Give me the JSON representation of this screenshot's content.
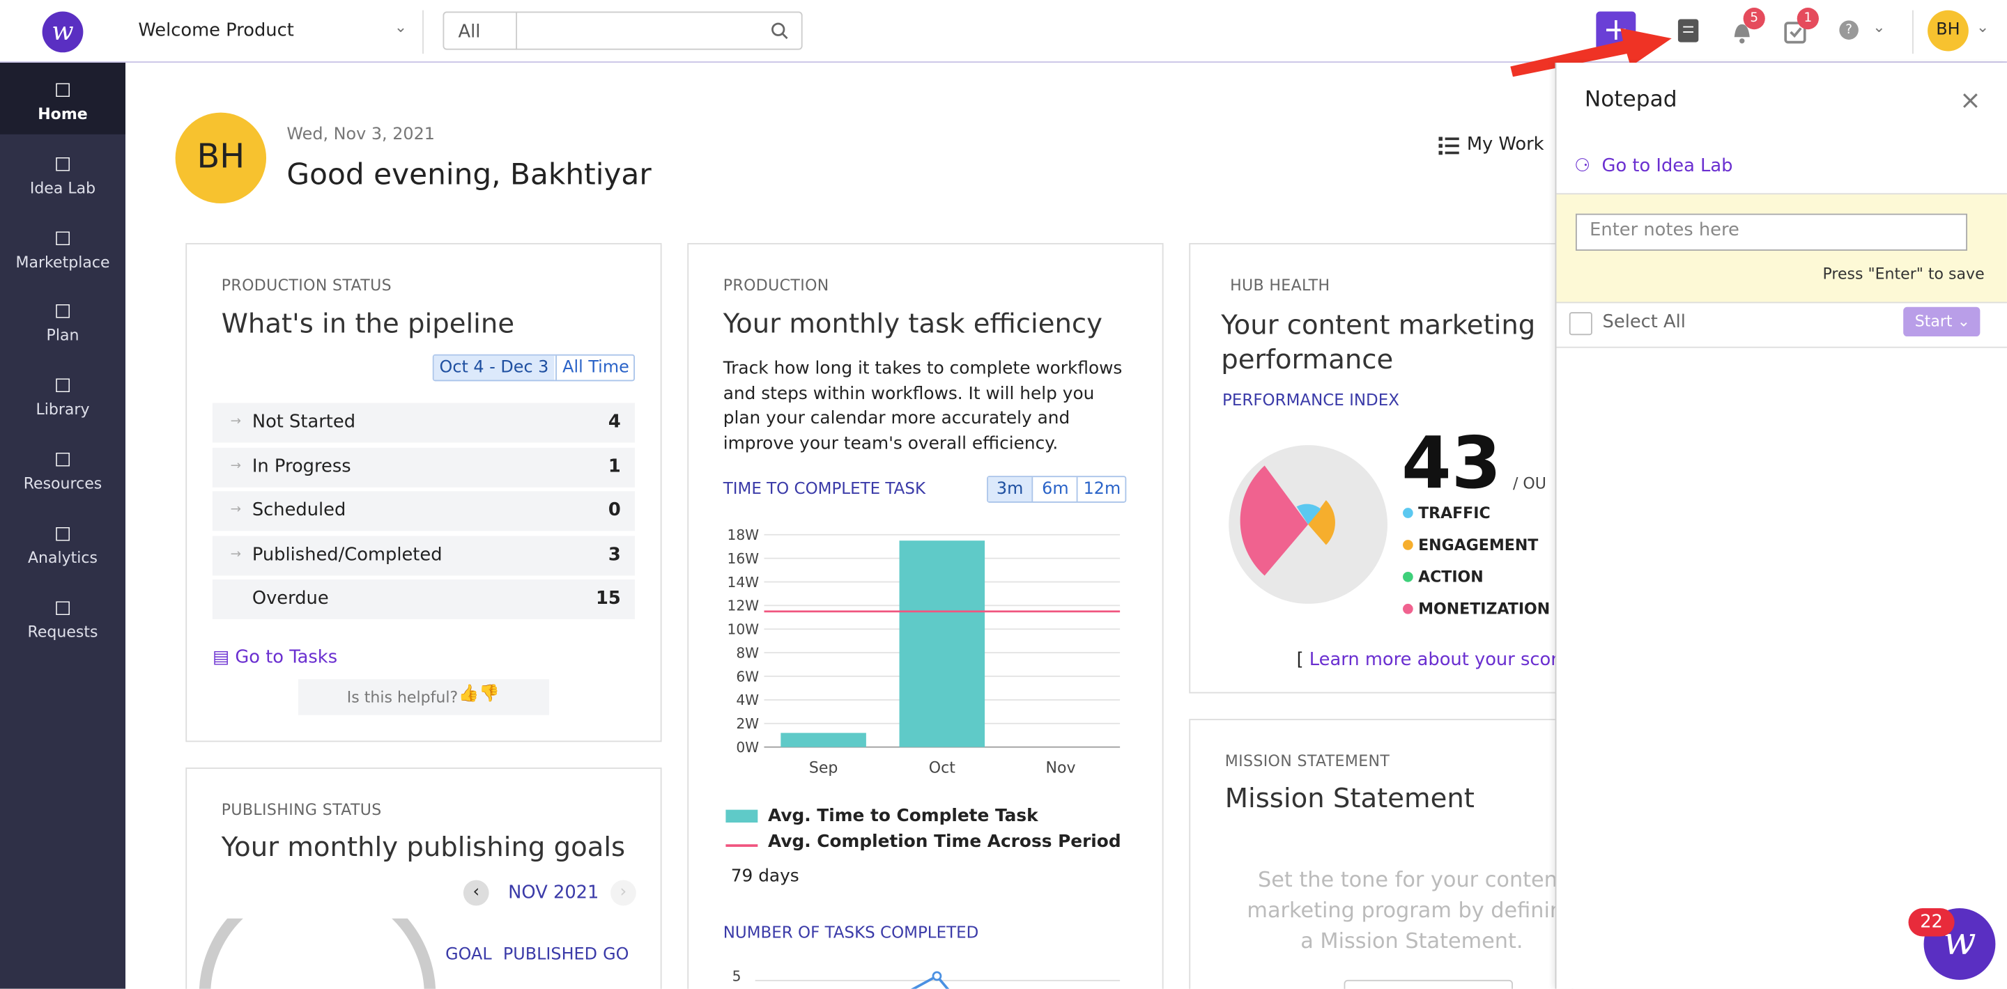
{
  "header": {
    "product": "Welcome Product",
    "search_scope": "All",
    "notifications": 5,
    "tasks": 1,
    "avatar": "BH"
  },
  "sidebar": [
    "Home",
    "Idea Lab",
    "Marketplace",
    "Plan",
    "Library",
    "Resources",
    "Analytics",
    "Requests"
  ],
  "greeting": {
    "avatar": "BH",
    "date": "Wed, Nov 3, 2021",
    "title": "Good evening, Bakhtiyar",
    "my_work": "My Work"
  },
  "production_status": {
    "kicker": "PRODUCTION STATUS",
    "title": "What's in the pipeline",
    "ranges": [
      "Oct 4 - Dec 3",
      "All Time"
    ],
    "rows": [
      [
        "Not Started",
        4
      ],
      [
        "In Progress",
        1
      ],
      [
        "Scheduled",
        0
      ],
      [
        "Published/Completed",
        3
      ],
      [
        "Overdue",
        15
      ]
    ],
    "link": "Go to Tasks",
    "helpful": "Is this helpful?"
  },
  "publishing_status": {
    "kicker": "PUBLISHING STATUS",
    "title": "Your monthly publishing goals",
    "month": "NOV 2021",
    "columns": [
      "GOAL",
      "PUBLISHED",
      "GO"
    ]
  },
  "production": {
    "kicker": "PRODUCTION",
    "title": "Your monthly task efficiency",
    "description": "Track how long it takes to complete workflows and steps within workflows. It will help you plan your calendar more accurately and improve your team's overall efficiency.",
    "chart_label": "TIME TO COMPLETE TASK",
    "ranges": [
      "3m",
      "6m",
      "12m"
    ],
    "chart_data": {
      "type": "bar",
      "categories": [
        "Sep",
        "Oct",
        "Nov"
      ],
      "series": [
        {
          "name": "Avg. Time to Complete Task",
          "color": "#5fcac8",
          "values": [
            1.2,
            17.5,
            0
          ]
        }
      ],
      "reference_line": {
        "name": "Avg. Completion Time Across Period",
        "color": "#f0557f",
        "value": 11.5
      },
      "ylim": [
        0,
        18
      ],
      "yticks": [
        {
          "value": 0,
          "label": "0W"
        },
        {
          "value": 2,
          "label": "2W"
        },
        {
          "value": 4,
          "label": "4W"
        },
        {
          "value": 6,
          "label": "6W"
        },
        {
          "value": 8,
          "label": "8W"
        },
        {
          "value": 10,
          "label": "10W"
        },
        {
          "value": 12,
          "label": "12W"
        },
        {
          "value": 14,
          "label": "14W"
        },
        {
          "value": 16,
          "label": "16W"
        },
        {
          "value": 18,
          "label": "18W"
        }
      ],
      "grid": true
    },
    "days": "79 days",
    "tasks_label": "NUMBER OF TASKS COMPLETED",
    "tasks_tick": 5
  },
  "hub_health": {
    "kicker": "HUB HEALTH",
    "title": "Your content marketing performance",
    "index_label": "PERFORMANCE INDEX",
    "score": 43,
    "score_suffix": "/ OU",
    "legend": [
      {
        "name": "TRAFFIC",
        "color": "#5bc8f0"
      },
      {
        "name": "ENGAGEMENT",
        "color": "#f6ae2d"
      },
      {
        "name": "ACTION",
        "color": "#3ed07a"
      },
      {
        "name": "MONETIZATION",
        "color": "#f0628f"
      }
    ],
    "link": "Learn more about your score"
  },
  "mission": {
    "kicker": "MISSION STATEMENT",
    "title": "Mission Statement",
    "placeholder": "Set the tone for your content marketing program by defining a Mission Statement."
  },
  "notepad": {
    "title": "Notepad",
    "link": "Go to Idea Lab",
    "placeholder": "Enter notes here",
    "hint": "Press \"Enter\" to save",
    "select_all": "Select All",
    "start": "Start"
  },
  "chat_badge": 22
}
